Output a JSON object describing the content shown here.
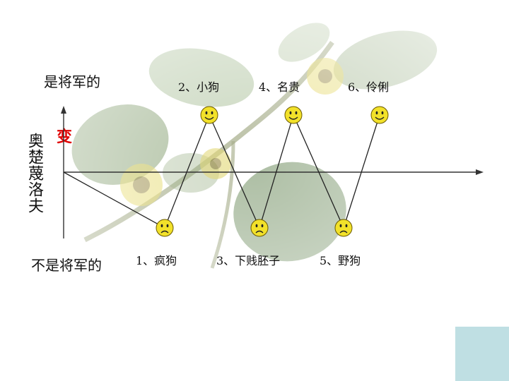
{
  "labels": {
    "top_left": "是将军的",
    "bottom_left": "不是将军的",
    "vertical_name": "奥楚蔑洛夫",
    "change_char": "变"
  },
  "points": [
    {
      "label": "1、疯狗",
      "face": "frown",
      "row": "low"
    },
    {
      "label": "2、小狗",
      "face": "smile",
      "row": "high"
    },
    {
      "label": "3、下贱胚子",
      "face": "frown",
      "row": "low"
    },
    {
      "label": "4、名贵",
      "face": "smile",
      "row": "high"
    },
    {
      "label": "5、野狗",
      "face": "frown",
      "row": "low"
    },
    {
      "label": "6、伶俐",
      "face": "smile",
      "row": "high"
    }
  ],
  "colors": {
    "face_fill": "#f2e12a",
    "face_stroke": "#6b5a00",
    "accent_red": "#e00000",
    "corner_box": "#bfdfe3"
  }
}
